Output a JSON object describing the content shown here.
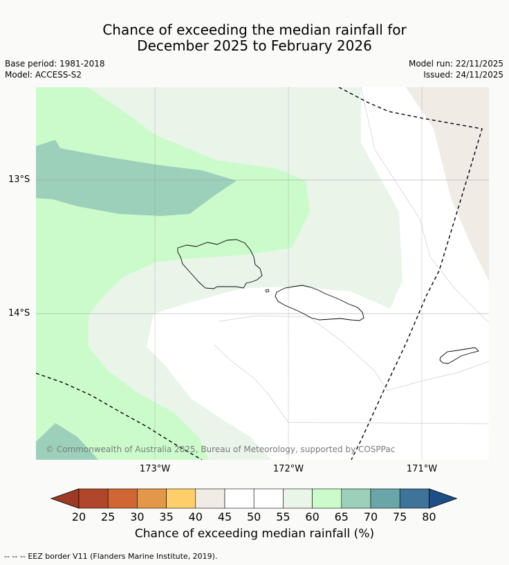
{
  "title": {
    "line1": "Chance of exceeding the median rainfall for",
    "line2": "December 2025 to February 2026"
  },
  "meta": {
    "base_period": "Base period: 1981-2018",
    "model": "Model: ACCESS-S2",
    "model_run": "Model run: 22/11/2025",
    "issued": "Issued: 24/11/2025"
  },
  "map": {
    "lat_labels": [
      "13°S",
      "14°S"
    ],
    "lon_labels": [
      "173°W",
      "172°W",
      "171°W"
    ],
    "copyright": "© Commonwealth of Australia 2025, Bureau of Meteorology, supported by COSPPac",
    "colors": {
      "band_45_55": "#ffffff",
      "band_55_60": "#eaf5ea",
      "band_60_65": "#cbfbcb",
      "band_65_70": "#9dd0bb",
      "band_40_45": "#f1ebe6"
    }
  },
  "colorbar": {
    "ticks": [
      "20",
      "25",
      "30",
      "35",
      "40",
      "45",
      "50",
      "55",
      "60",
      "65",
      "70",
      "75",
      "80"
    ],
    "colors": [
      "#b0472a",
      "#d06633",
      "#e29848",
      "#fdce6a",
      "#f1ebe6",
      "#ffffff",
      "#ffffff",
      "#eaf5ea",
      "#cbfbcb",
      "#9dd0bb",
      "#6aa6a8",
      "#3e7499"
    ],
    "under_color": "#9c3a26",
    "over_color": "#1c4f87",
    "label": "Chance of exceeding median rainfall (%)"
  },
  "footer": {
    "dash_glyph": "--  --  --",
    "text": "EEZ border V11 (Flanders Marine Institute, 2019)."
  }
}
